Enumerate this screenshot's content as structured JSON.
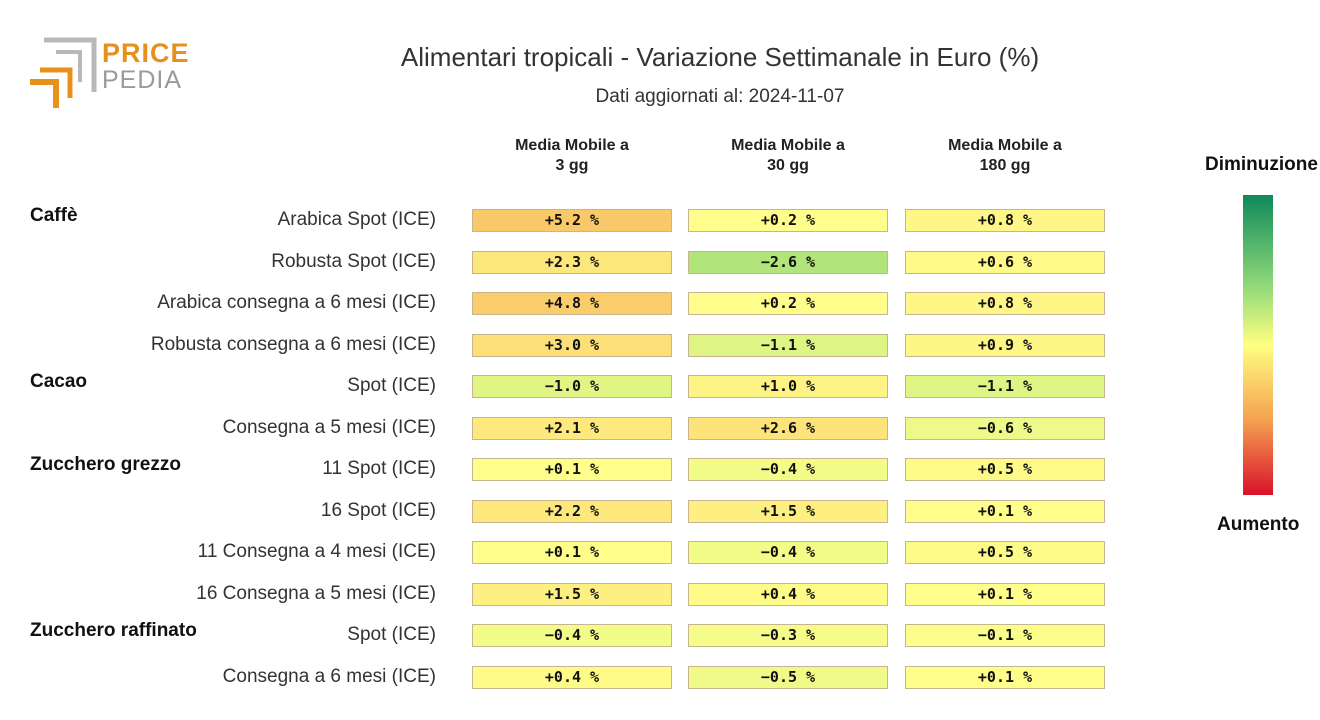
{
  "title": "Alimentari tropicali - Variazione Settimanale in Euro (%)",
  "subtitle": "Dati aggiornati al: 2024-11-07",
  "logo": {
    "line1": "PRICE",
    "line2": "PEDIA"
  },
  "legend": {
    "top_label": "Diminuzione",
    "bottom_label": "Aumento"
  },
  "chart_data": {
    "type": "heatmap",
    "columns": [
      "Media Mobile a\n3 gg",
      "Media Mobile a\n30 gg",
      "Media Mobile a\n180 gg"
    ],
    "groups": [
      "Caffè",
      "Cacao",
      "Zucchero grezzo",
      "Zucchero raffinato"
    ],
    "rows": [
      {
        "group": "Caffè",
        "label": "Arabica Spot (ICE)",
        "values": [
          5.2,
          0.2,
          0.8
        ],
        "labels": [
          "+5.2 %",
          "+0.2 %",
          "+0.8 %"
        ]
      },
      {
        "group": "Caffè",
        "label": "Robusta Spot (ICE)",
        "values": [
          2.3,
          -2.6,
          0.6
        ],
        "labels": [
          "+2.3 %",
          "−2.6 %",
          "+0.6 %"
        ]
      },
      {
        "group": "Caffè",
        "label": "Arabica consegna a 6 mesi (ICE)",
        "values": [
          4.8,
          0.2,
          0.8
        ],
        "labels": [
          "+4.8 %",
          "+0.2 %",
          "+0.8 %"
        ]
      },
      {
        "group": "Caffè",
        "label": "Robusta consegna a 6 mesi (ICE)",
        "values": [
          3.0,
          -1.1,
          0.9
        ],
        "labels": [
          "+3.0 %",
          "−1.1 %",
          "+0.9 %"
        ]
      },
      {
        "group": "Cacao",
        "label": "Spot (ICE)",
        "values": [
          -1.0,
          1.0,
          -1.1
        ],
        "labels": [
          "−1.0 %",
          "+1.0 %",
          "−1.1 %"
        ]
      },
      {
        "group": "Cacao",
        "label": "Consegna a 5 mesi (ICE)",
        "values": [
          2.1,
          2.6,
          -0.6
        ],
        "labels": [
          "+2.1 %",
          "+2.6 %",
          "−0.6 %"
        ]
      },
      {
        "group": "Zucchero grezzo",
        "label": "11 Spot (ICE)",
        "values": [
          0.1,
          -0.4,
          0.5
        ],
        "labels": [
          "+0.1 %",
          "−0.4 %",
          "+0.5 %"
        ]
      },
      {
        "group": "Zucchero grezzo",
        "label": "16 Spot (ICE)",
        "values": [
          2.2,
          1.5,
          0.1
        ],
        "labels": [
          "+2.2 %",
          "+1.5 %",
          "+0.1 %"
        ]
      },
      {
        "group": "Zucchero grezzo",
        "label": "11 Consegna a 4 mesi (ICE)",
        "values": [
          0.1,
          -0.4,
          0.5
        ],
        "labels": [
          "+0.1 %",
          "−0.4 %",
          "+0.5 %"
        ]
      },
      {
        "group": "Zucchero grezzo",
        "label": "16 Consegna a 5 mesi (ICE)",
        "values": [
          1.5,
          0.4,
          0.1
        ],
        "labels": [
          "+1.5 %",
          "+0.4 %",
          "+0.1 %"
        ]
      },
      {
        "group": "Zucchero raffinato",
        "label": "Spot (ICE)",
        "values": [
          -0.4,
          -0.3,
          -0.1
        ],
        "labels": [
          "−0.4 %",
          "−0.3 %",
          "−0.1 %"
        ]
      },
      {
        "group": "Zucchero raffinato",
        "label": "Consegna a 6 mesi (ICE)",
        "values": [
          0.4,
          -0.5,
          0.1
        ],
        "labels": [
          "+0.4 %",
          "−0.5 %",
          "+0.1 %"
        ]
      }
    ]
  }
}
